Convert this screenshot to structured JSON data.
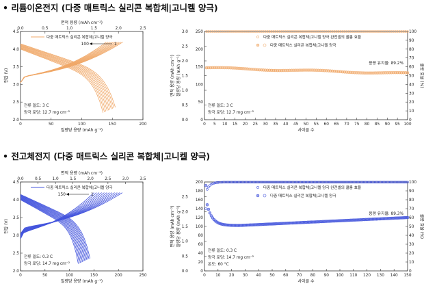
{
  "sections": [
    {
      "heading": "• 리튬이온전지 (다중 매트릭스 실리콘 복합체|고니켈 양극)"
    },
    {
      "heading": "• 전고체전지 (다중 매트릭스 실리콘 복합체|고니켈 양극)"
    }
  ],
  "colors": {
    "li_ion": "#f0a868",
    "solid_state": "#4455dd",
    "frame": "#333333"
  },
  "charts": {
    "li_left": {
      "top_label": "면적 용량 (mAh cm⁻²)",
      "x_label": "질량당 용량 (mAh g⁻¹)",
      "y_label": "전압 (V)",
      "legend": "다중 매트릭스 실리콘 복합체|고니켈 양극",
      "arrow_left": "100",
      "arrow_right": "1",
      "note1": "전류 밀도: 3 C",
      "note2": "양극 로딩: 12.7 mg cm⁻²",
      "note3": ""
    },
    "li_right": {
      "x_label": "사이클 수",
      "y_left_label": "면적 용량 (mAh cm⁻²)",
      "y_left2_label": "질량당 용량 (mAh g⁻¹)",
      "y_right_label": "쿨롱 효율 (%)",
      "legend1": "다중 매트릭스 실리콘 복합체|고니켈 양극 완전셀의 쿨롱 효율",
      "legend2": "다중 매트릭스 실리콘 복합체|고니켈 양극",
      "retention": "용량 유지율: 89.2%",
      "note1": "전류 밀도: 3 C",
      "note2": "양극 로딩: 12.7 mg cm⁻²",
      "note3": ""
    },
    "ss_left": {
      "top_label": "면적 용량 (mAh cm⁻²)",
      "x_label": "질량당 용량 (mAh g⁻¹)",
      "y_label": "전압 (V)",
      "legend": "다중 매트릭스 실리콘 복합체|고니켈 양극",
      "arrow_left": "150",
      "arrow_right": "1",
      "note1": "전류 밀도: 0.3 C",
      "note2": "양극 로딩: 14.7 mg cm⁻²",
      "note3": ""
    },
    "ss_right": {
      "x_label": "사이클 수",
      "y_left_label": "면적 용량 (mAh cm⁻²)",
      "y_left2_label": "질량당 용량 (mAh g⁻¹)",
      "y_right_label": "쿨롱 효율 (%)",
      "legend1": "다중 매트릭스 실리콘 복합체|고니켈 양극 완전셀의 쿨롱 효율",
      "legend2": "다중 매트릭스 실리콘 복합체|고니켈 양극",
      "retention": "용량 유지율: 89.3%",
      "note1": "전류 밀도: 0.3 C",
      "note2": "양극 로딩: 14.7 mg cm⁻²",
      "note3": "온도: 60 °C"
    }
  },
  "chart_data": [
    {
      "type": "line",
      "title": "",
      "xlabel": "질량당 용량 (mAh g⁻¹)",
      "ylabel": "전압 (V)",
      "xlim": [
        0,
        200
      ],
      "ylim": [
        2.0,
        4.5
      ],
      "x_ticks": [
        0,
        50,
        100,
        150,
        200
      ],
      "y_ticks": [
        2.0,
        2.5,
        3.0,
        3.5,
        4.0,
        4.5
      ],
      "secondary_x": {
        "label": "면적 용량 (mAh cm⁻²)",
        "lim": [
          0.0,
          2.5
        ],
        "ticks": [
          0.0,
          0.5,
          1.0,
          1.5,
          2.0,
          2.5
        ]
      },
      "cycles_labeled": [
        1,
        100
      ],
      "series": [
        {
          "name": "다중 매트릭스 실리콘 복합체|고니켈 양극",
          "charge_end_capacity_first": 167,
          "charge_end_capacity_last": 140,
          "discharge_end_capacity_first": 155,
          "discharge_end_capacity_last": 135,
          "curves": 10
        }
      ]
    },
    {
      "type": "scatter",
      "title": "",
      "xlabel": "사이클 수",
      "ylabel": "면적 용량 (mAh cm⁻²)",
      "xlim": [
        0,
        100
      ],
      "x_ticks": [
        0,
        5,
        10,
        15,
        20,
        25,
        30,
        35,
        40,
        45,
        50,
        55,
        60,
        65,
        70,
        75,
        80,
        85,
        90,
        95,
        100
      ],
      "ylim": [
        0.0,
        3.0
      ],
      "y_ticks": [
        0.0,
        0.5,
        1.0,
        1.5,
        2.0,
        2.5,
        3.0
      ],
      "y2": {
        "label": "질량당 용량 (mAh g⁻¹)",
        "lim": [
          0,
          250
        ],
        "ticks": [
          0,
          50,
          100,
          150,
          200,
          250
        ]
      },
      "y3": {
        "label": "쿨롱 효율 (%)",
        "lim": [
          0,
          100
        ],
        "ticks": [
          0,
          10,
          20,
          30,
          40,
          50,
          60,
          70,
          80,
          90,
          100
        ]
      },
      "series": [
        {
          "name": "다중 매트릭스 실리콘 복합체|고니켈 양극 완전셀의 쿨롱 효율",
          "axis": "y3",
          "start": 100,
          "end": 100
        },
        {
          "name": "다중 매트릭스 실리콘 복합체|고니켈 양극",
          "axis": "y2",
          "start": 147,
          "end": 131
        }
      ],
      "annotations": [
        "용량 유지율: 89.2%"
      ]
    },
    {
      "type": "line",
      "title": "",
      "xlabel": "질량당 용량 (mAh g⁻¹)",
      "ylabel": "전압 (V)",
      "xlim": [
        0,
        250
      ],
      "ylim": [
        2.0,
        4.5
      ],
      "x_ticks": [
        0,
        50,
        100,
        150,
        200,
        250
      ],
      "y_ticks": [
        2.0,
        2.5,
        3.0,
        3.5,
        4.0,
        4.5
      ],
      "secondary_x": {
        "label": "면적 용량 (mAh cm⁻²)",
        "lim": [
          0.0,
          3.5
        ],
        "ticks": [
          0.0,
          0.5,
          1.0,
          1.5,
          2.0,
          2.5,
          3.0,
          3.5
        ]
      },
      "cycles_labeled": [
        1,
        150
      ],
      "series": [
        {
          "name": "다중 매트릭스 실리콘 복합체|고니켈 양극",
          "charge_end_capacity_first": 208,
          "charge_end_capacity_last": 150,
          "discharge_end_capacity_first": 142,
          "discharge_end_capacity_last": 118,
          "curves": 12
        }
      ]
    },
    {
      "type": "scatter",
      "title": "",
      "xlabel": "사이클 수",
      "ylabel": "면적 용량 (mAh cm⁻²)",
      "xlim": [
        0,
        150
      ],
      "x_ticks": [
        0,
        10,
        20,
        30,
        40,
        50,
        60,
        70,
        80,
        90,
        100,
        110,
        120,
        130,
        140,
        150
      ],
      "ylim": [
        0.0,
        3.0
      ],
      "y_ticks": [
        0.0,
        0.5,
        1.0,
        1.5,
        2.0,
        2.5
      ],
      "y2": {
        "label": "질량당 용량 (mAh g⁻¹)",
        "lim": [
          0,
          200
        ],
        "ticks": [
          0,
          20,
          40,
          60,
          80,
          100,
          120,
          140,
          160,
          180,
          200
        ]
      },
      "y3": {
        "label": "쿨롱 효율 (%)",
        "lim": [
          0,
          100
        ],
        "ticks": [
          0,
          10,
          20,
          30,
          40,
          50,
          60,
          70,
          80,
          90,
          100
        ]
      },
      "series": [
        {
          "name": "다중 매트릭스 실리콘 복합체|고니켈 양극 완전셀의 쿨롱 효율",
          "axis": "y3",
          "first": 70,
          "by_cycle_10": 98,
          "end": 99.8
        },
        {
          "name": "다중 매트릭스 실리콘 복합체|고니켈 양극",
          "axis": "y2",
          "first": 192,
          "min": 102,
          "end": 120
        }
      ],
      "annotations": [
        "용량 유지율: 89.3%"
      ]
    }
  ]
}
